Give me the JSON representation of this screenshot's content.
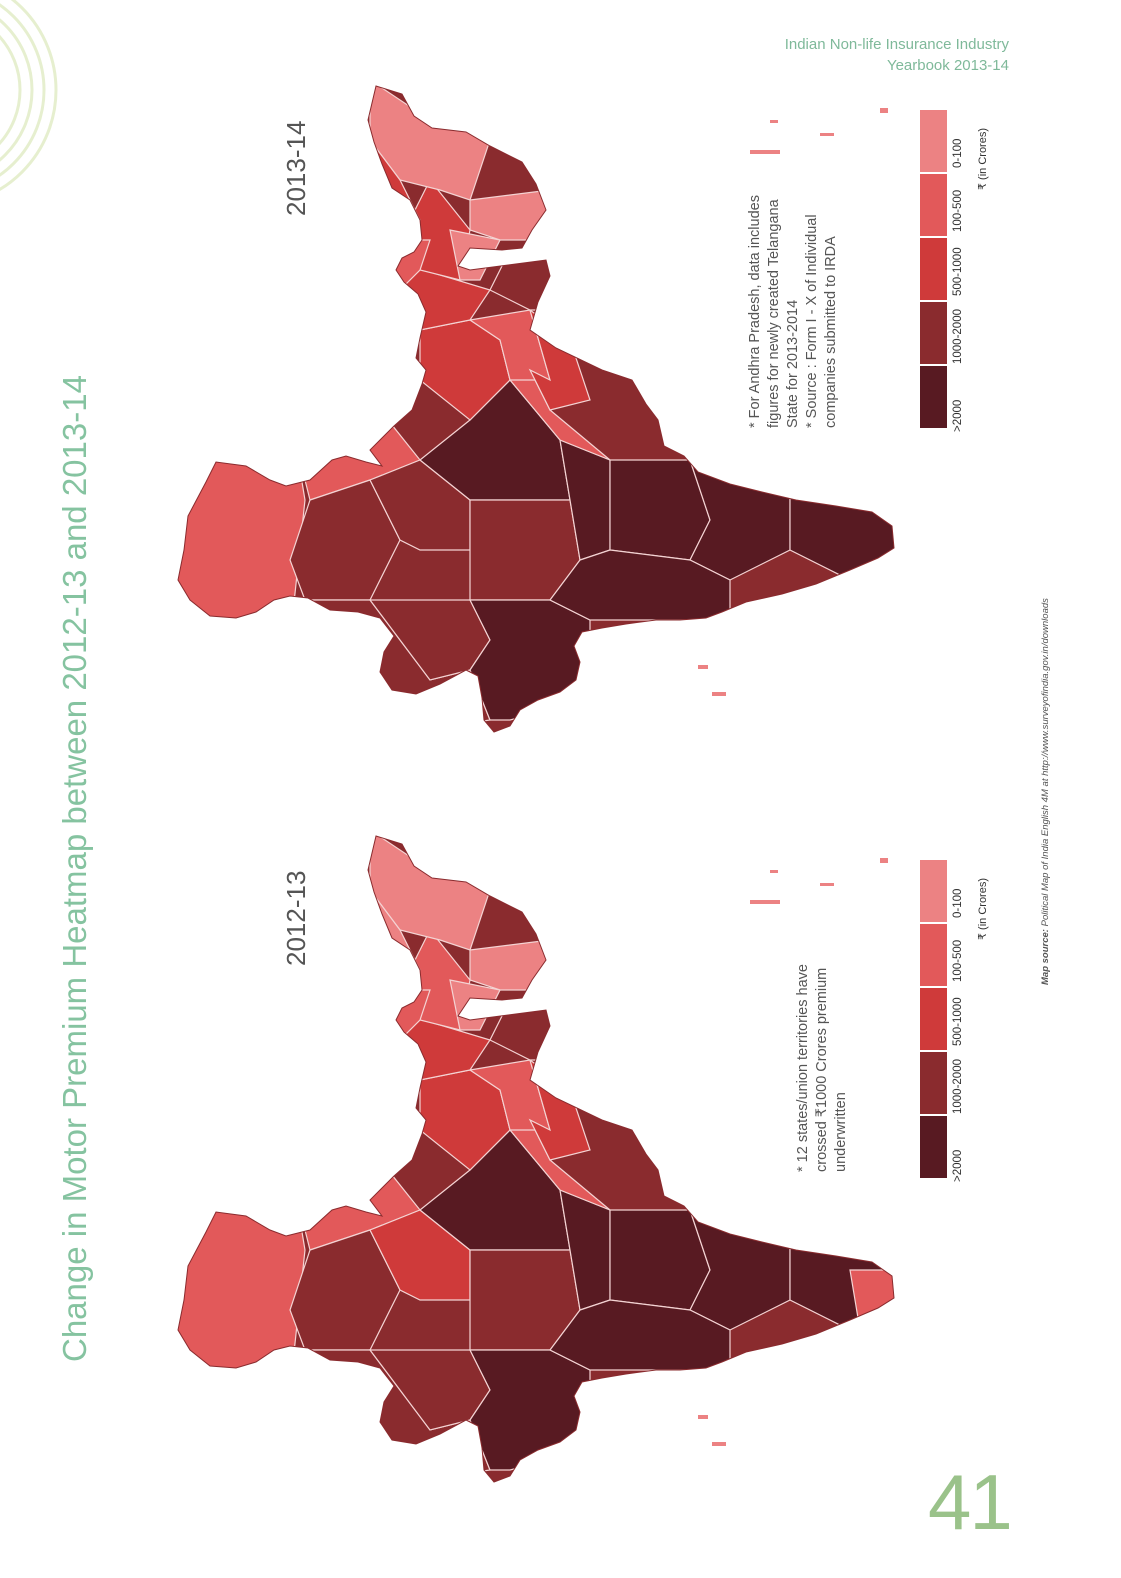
{
  "header": {
    "line1": "Indian Non-life Insurance Industry",
    "line2": "Yearbook 2013-14"
  },
  "title": "Change in Motor Premium Heatmap between 2012-13 and 2013-14",
  "page_number": "41",
  "map_source": {
    "label": "Map source:",
    "text": "Political Map of India English 4M at http://www.surveyofindia.gov.in/downloads"
  },
  "legend": {
    "unit": "₹ (in Crores)",
    "classes": [
      {
        "label": ">2000",
        "color": "#581a22"
      },
      {
        "label": "1000-2000",
        "color": "#8a2b2e"
      },
      {
        "label": "500-1000",
        "color": "#cf3a3a"
      },
      {
        "label": "100-500",
        "color": "#e2595a"
      },
      {
        "label": "0-100",
        "color": "#ec8283"
      }
    ]
  },
  "maps": [
    {
      "year": "2012-13",
      "notes": [
        "* 12 states/union territories have",
        "crossed ₹1000 Crores premium",
        "underwritten"
      ]
    },
    {
      "year": "2013-14",
      "notes": [
        "* For Andhra Pradesh, data includes",
        "figures for newly created Telangana",
        "State for 2013-2014",
        "* Source : Form I - X of Individual",
        "companies submitted to IRDA"
      ]
    }
  ],
  "colors": {
    "accent_green": "#85c3a0",
    "page_number_green": "#9ac28a",
    "deco_green": "#e6efcf"
  },
  "icons": {
    "deco": "concentric-arcs-decoration",
    "map": "india-choropleth-map"
  }
}
